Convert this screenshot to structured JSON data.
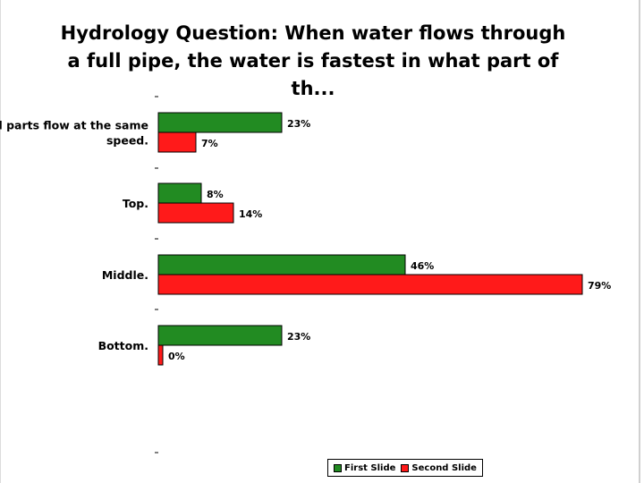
{
  "chart_data": {
    "type": "bar",
    "orientation": "horizontal",
    "title": "Hydrology Question: When water flows through a full pipe, the water is fastest in what part of th...",
    "categories": [
      "All parts flow at the same speed.",
      "Top.",
      "Middle.",
      "Bottom."
    ],
    "series": [
      {
        "name": "First Slide",
        "color": "#228b22",
        "values": [
          23,
          8,
          46,
          23
        ],
        "labels": [
          "23%",
          "8%",
          "46%",
          "23%"
        ]
      },
      {
        "name": "Second Slide",
        "color": "#ff1a1a",
        "values": [
          7,
          14,
          79,
          0
        ],
        "labels": [
          "7%",
          "14%",
          "79%",
          "0%"
        ]
      }
    ],
    "value_unit": "%",
    "xlim": [
      0,
      80
    ],
    "legend_position": "bottom-right",
    "grid": false
  }
}
